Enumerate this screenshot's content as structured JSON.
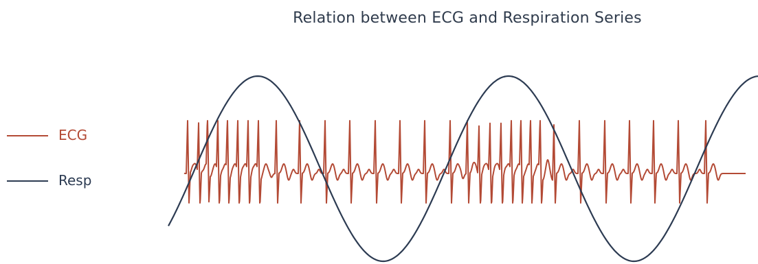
{
  "diagram": {
    "title": "Relation between ECG and Respiration Series",
    "legend": [
      {
        "label": "ECG",
        "color": "#b34a35"
      },
      {
        "label": "Resp",
        "color": "#2c3b52"
      }
    ],
    "resp": {
      "color": "#2c3b52",
      "description": "sinusoidal respiration waveform, about 2.5 cycles"
    },
    "ecg": {
      "color": "#b34a35",
      "beats_per_cluster_fast": 9,
      "description": "ECG spikes clustered densely near inhalation and sparser during exhalation"
    }
  }
}
